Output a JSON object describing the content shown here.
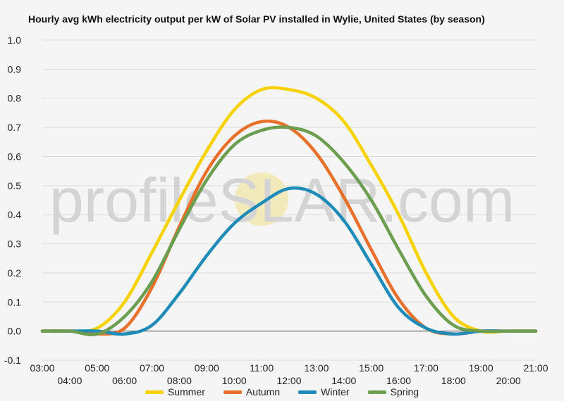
{
  "chart_data": {
    "type": "line",
    "title": "Hourly avg kWh electricity output per kW of Solar PV installed in Wylie, United States (by season)",
    "xlabel": "",
    "ylabel": "",
    "ylim": [
      -0.1,
      1.0
    ],
    "y_ticks": [
      "1.0",
      "0.9",
      "0.8",
      "0.7",
      "0.6",
      "0.5",
      "0.4",
      "0.3",
      "0.2",
      "0.1",
      "0.0",
      "-0.1"
    ],
    "x_ticks": [
      "03:00",
      "04:00",
      "05:00",
      "06:00",
      "07:00",
      "08:00",
      "09:00",
      "10:00",
      "11:00",
      "12:00",
      "13:00",
      "14:00",
      "15:00",
      "16:00",
      "17:00",
      "18:00",
      "19:00",
      "20:00",
      "21:00"
    ],
    "grid": true,
    "legend_position": "bottom",
    "series": [
      {
        "name": "Summer",
        "color": "#f6d200",
        "x": [
          3,
          4,
          5,
          6,
          7,
          8,
          9,
          10,
          11,
          12,
          13,
          14,
          15,
          16,
          17,
          18,
          19,
          20,
          21
        ],
        "values": [
          0,
          0,
          0.01,
          0.1,
          0.27,
          0.45,
          0.62,
          0.76,
          0.83,
          0.83,
          0.8,
          0.72,
          0.57,
          0.4,
          0.2,
          0.05,
          0.0,
          0,
          0
        ]
      },
      {
        "name": "Autumn",
        "color": "#e8702a",
        "x": [
          3,
          4,
          5,
          6,
          7,
          8,
          9,
          10,
          11,
          12,
          13,
          14,
          15,
          16,
          17,
          18,
          19,
          20,
          21
        ],
        "values": [
          0,
          0,
          -0.01,
          0.01,
          0.15,
          0.36,
          0.55,
          0.67,
          0.72,
          0.7,
          0.61,
          0.46,
          0.28,
          0.11,
          0.01,
          -0.01,
          0,
          0,
          0
        ]
      },
      {
        "name": "Winter",
        "color": "#1f8bb8",
        "x": [
          3,
          4,
          5,
          6,
          7,
          8,
          9,
          10,
          11,
          12,
          13,
          14,
          15,
          16,
          17,
          18,
          19,
          20,
          21
        ],
        "values": [
          0,
          0,
          0,
          -0.01,
          0.02,
          0.13,
          0.26,
          0.37,
          0.44,
          0.49,
          0.47,
          0.38,
          0.23,
          0.08,
          0.01,
          -0.01,
          0,
          0,
          0
        ]
      },
      {
        "name": "Spring",
        "color": "#6b9e4f",
        "x": [
          3,
          4,
          5,
          6,
          7,
          8,
          9,
          10,
          11,
          12,
          13,
          14,
          15,
          16,
          17,
          18,
          19,
          20,
          21
        ],
        "values": [
          0,
          0,
          -0.01,
          0.05,
          0.17,
          0.35,
          0.52,
          0.64,
          0.69,
          0.7,
          0.67,
          0.58,
          0.45,
          0.28,
          0.12,
          0.02,
          0,
          0,
          0
        ]
      }
    ]
  },
  "watermark": {
    "left": "profile",
    "sun_letter": "S",
    "right": "LAR.com"
  }
}
